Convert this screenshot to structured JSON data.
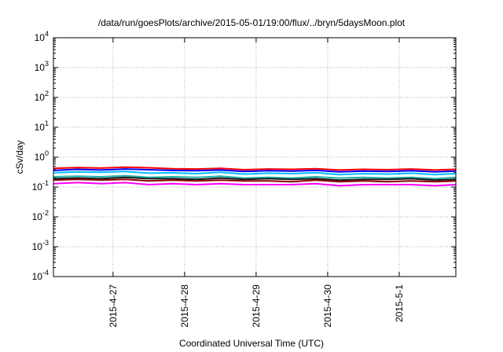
{
  "chart_data": {
    "type": "line",
    "title": "/data/run/goesPlots/archive/2015-05-01/19:00/flux/../bryn/5daysMoon.plot",
    "xlabel": "Coordinated Universal Time (UTC)",
    "ylabel": "cSv/day",
    "yscale": "log",
    "ylim": [
      0.0001,
      10000
    ],
    "xlim": [
      "2015-04-26T04:00",
      "2015-05-01T19:00"
    ],
    "grid": true,
    "y_ticks": [
      {
        "value": 0.0001,
        "base": "10",
        "exp": "-4"
      },
      {
        "value": 0.001,
        "base": "10",
        "exp": "-3"
      },
      {
        "value": 0.01,
        "base": "10",
        "exp": "-2"
      },
      {
        "value": 0.1,
        "base": "10",
        "exp": "-1"
      },
      {
        "value": 1,
        "base": "10",
        "exp": "0"
      },
      {
        "value": 10,
        "base": "10",
        "exp": "1"
      },
      {
        "value": 100,
        "base": "10",
        "exp": "2"
      },
      {
        "value": 1000,
        "base": "10",
        "exp": "3"
      },
      {
        "value": 10000,
        "base": "10",
        "exp": "4"
      }
    ],
    "x_ticks": [
      {
        "value": "2015-04-27",
        "label": "2015-4-27"
      },
      {
        "value": "2015-04-28",
        "label": "2015-4-28"
      },
      {
        "value": "2015-04-29",
        "label": "2015-4-29"
      },
      {
        "value": "2015-04-30",
        "label": "2015-4-30"
      },
      {
        "value": "2015-05-01",
        "label": "2015-5-1"
      }
    ],
    "x": [
      "2015-04-26T04:00",
      "2015-04-26T12:00",
      "2015-04-26T20:00",
      "2015-04-27T04:00",
      "2015-04-27T12:00",
      "2015-04-27T20:00",
      "2015-04-28T04:00",
      "2015-04-28T12:00",
      "2015-04-28T20:00",
      "2015-04-29T04:00",
      "2015-04-29T12:00",
      "2015-04-29T20:00",
      "2015-04-30T04:00",
      "2015-04-30T12:00",
      "2015-04-30T20:00",
      "2015-05-01T04:00",
      "2015-05-01T12:00",
      "2015-05-01T19:00"
    ],
    "series": [
      {
        "color": "#ff0000",
        "values": [
          0.42,
          0.45,
          0.43,
          0.46,
          0.44,
          0.41,
          0.4,
          0.42,
          0.38,
          0.4,
          0.39,
          0.41,
          0.37,
          0.39,
          0.38,
          0.4,
          0.37,
          0.39
        ]
      },
      {
        "color": "#0000ff",
        "values": [
          0.36,
          0.39,
          0.37,
          0.4,
          0.38,
          0.36,
          0.35,
          0.37,
          0.33,
          0.35,
          0.34,
          0.36,
          0.32,
          0.34,
          0.33,
          0.35,
          0.32,
          0.34
        ]
      },
      {
        "color": "#00bfff",
        "values": [
          0.3,
          0.32,
          0.31,
          0.33,
          0.29,
          0.3,
          0.28,
          0.31,
          0.27,
          0.29,
          0.28,
          0.3,
          0.26,
          0.28,
          0.27,
          0.29,
          0.26,
          0.28
        ]
      },
      {
        "color": "#20b2aa",
        "values": [
          0.22,
          0.23,
          0.22,
          0.24,
          0.21,
          0.22,
          0.21,
          0.23,
          0.2,
          0.21,
          0.2,
          0.22,
          0.2,
          0.21,
          0.2,
          0.21,
          0.19,
          0.21
        ]
      },
      {
        "color": "#1a1a1a",
        "values": [
          0.19,
          0.2,
          0.19,
          0.21,
          0.19,
          0.19,
          0.18,
          0.2,
          0.18,
          0.19,
          0.18,
          0.19,
          0.17,
          0.18,
          0.18,
          0.19,
          0.17,
          0.18
        ]
      },
      {
        "color": "#8b0000",
        "values": [
          0.17,
          0.18,
          0.17,
          0.18,
          0.16,
          0.17,
          0.16,
          0.17,
          0.16,
          0.16,
          0.15,
          0.17,
          0.15,
          0.16,
          0.15,
          0.16,
          0.15,
          0.16
        ]
      },
      {
        "color": "#ff00ff",
        "values": [
          0.13,
          0.14,
          0.13,
          0.14,
          0.12,
          0.13,
          0.12,
          0.13,
          0.12,
          0.12,
          0.12,
          0.13,
          0.11,
          0.12,
          0.12,
          0.12,
          0.11,
          0.12
        ]
      }
    ]
  }
}
